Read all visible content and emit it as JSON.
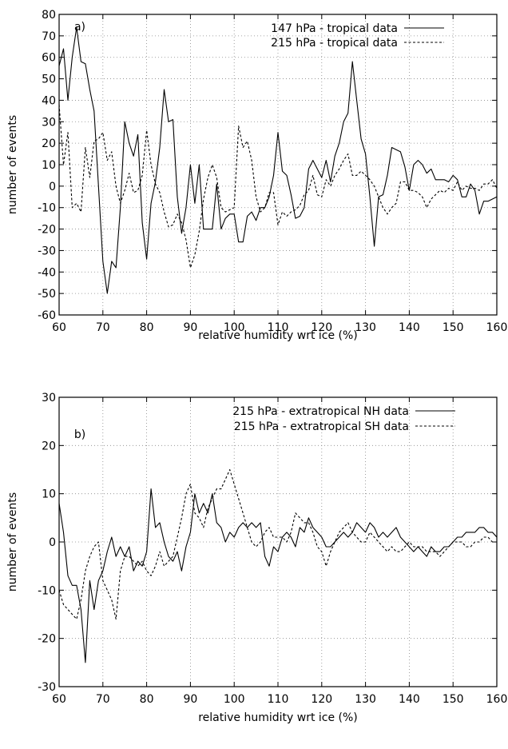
{
  "chart_data": [
    {
      "type": "line",
      "panel_label": "a)",
      "xlabel": "relative humidity wrt ice (%)",
      "ylabel": "number of events",
      "xlim": [
        60,
        160
      ],
      "ylim": [
        -60,
        80
      ],
      "xticks": [
        60,
        70,
        80,
        90,
        100,
        110,
        120,
        130,
        140,
        150,
        160
      ],
      "yticks": [
        -60,
        -50,
        -40,
        -30,
        -20,
        -10,
        0,
        10,
        20,
        30,
        40,
        50,
        60,
        70,
        80
      ],
      "grid": true,
      "legend_position": "top-right",
      "series": [
        {
          "name": "147 hPa - tropical data",
          "style": "solid",
          "x": [
            60,
            61,
            62,
            63,
            64,
            65,
            66,
            67,
            68,
            69,
            70,
            71,
            72,
            73,
            74,
            75,
            76,
            77,
            78,
            79,
            80,
            81,
            82,
            83,
            84,
            85,
            86,
            87,
            88,
            89,
            90,
            91,
            92,
            93,
            94,
            95,
            96,
            97,
            98,
            99,
            100,
            101,
            102,
            103,
            104,
            105,
            106,
            107,
            108,
            109,
            110,
            111,
            112,
            113,
            114,
            115,
            116,
            117,
            118,
            119,
            120,
            121,
            122,
            123,
            124,
            125,
            126,
            127,
            128,
            129,
            130,
            131,
            132,
            133,
            134,
            135,
            136,
            137,
            138,
            139,
            140,
            141,
            142,
            143,
            144,
            145,
            146,
            147,
            148,
            149,
            150,
            151,
            152,
            153,
            154,
            155,
            156,
            157,
            158,
            159,
            160
          ],
          "y": [
            56,
            64,
            40,
            60,
            74,
            58,
            57,
            45,
            35,
            0,
            -35,
            -50,
            -35,
            -38,
            -10,
            30,
            20,
            14,
            24,
            -17,
            -34,
            -8,
            2,
            18,
            45,
            30,
            31,
            -5,
            -22,
            -10,
            10,
            -8,
            10,
            -20,
            -20,
            -20,
            1,
            -20,
            -15,
            -13,
            -13,
            -26,
            -26,
            -14,
            -12,
            -16,
            -10,
            -10,
            -5,
            5,
            25,
            7,
            5,
            -4,
            -15,
            -14,
            -10,
            8,
            12,
            8,
            4,
            12,
            2,
            14,
            20,
            30,
            34,
            58,
            40,
            22,
            15,
            -5,
            -28,
            -5,
            -4,
            5,
            18,
            17,
            16,
            9,
            -2,
            10,
            12,
            10,
            6,
            8,
            3,
            3,
            3,
            2,
            5,
            3,
            -5,
            -5,
            1,
            -2,
            -13,
            -7,
            -7,
            -6,
            -5
          ]
        },
        {
          "name": "215 hPa - tropical data",
          "style": "dashed",
          "x": [
            60,
            61,
            62,
            63,
            64,
            65,
            66,
            67,
            68,
            69,
            70,
            71,
            72,
            73,
            74,
            75,
            76,
            77,
            78,
            79,
            80,
            81,
            82,
            83,
            84,
            85,
            86,
            87,
            88,
            89,
            90,
            91,
            92,
            93,
            94,
            95,
            96,
            97,
            98,
            99,
            100,
            101,
            102,
            103,
            104,
            105,
            106,
            107,
            108,
            109,
            110,
            111,
            112,
            113,
            114,
            115,
            116,
            117,
            118,
            119,
            120,
            121,
            122,
            123,
            124,
            125,
            126,
            127,
            128,
            129,
            130,
            131,
            132,
            133,
            134,
            135,
            136,
            137,
            138,
            139,
            140,
            141,
            142,
            143,
            144,
            145,
            146,
            147,
            148,
            149,
            150,
            151,
            152,
            153,
            154,
            155,
            156,
            157,
            158,
            159,
            160
          ],
          "y": [
            38,
            10,
            25,
            -10,
            -8,
            -12,
            18,
            4,
            21,
            22,
            25,
            12,
            16,
            0,
            -8,
            -2,
            6,
            -3,
            -2,
            5,
            26,
            10,
            1,
            -3,
            -12,
            -19,
            -18,
            -13,
            -17,
            -25,
            -38,
            -32,
            -21,
            -6,
            4,
            10,
            4,
            -10,
            -12,
            -11,
            -10,
            28,
            18,
            21,
            12,
            -5,
            -12,
            -10,
            -3,
            -3,
            -18,
            -12,
            -14,
            -12,
            -11,
            -9,
            -4,
            -2,
            5,
            -4,
            -5,
            3,
            0,
            5,
            8,
            12,
            15,
            5,
            5,
            7,
            5,
            3,
            0,
            -5,
            -10,
            -13,
            -10,
            -8,
            2,
            2,
            -2,
            -2,
            -3,
            -5,
            -10,
            -6,
            -4,
            -2,
            -3,
            -1,
            -2,
            2,
            -2,
            0,
            -1,
            -1,
            -2,
            1,
            1,
            3,
            -1
          ]
        }
      ]
    },
    {
      "type": "line",
      "panel_label": "b)",
      "xlabel": "relative humidity wrt ice (%)",
      "ylabel": "number of events",
      "xlim": [
        60,
        160
      ],
      "ylim": [
        -30,
        30
      ],
      "xticks": [
        60,
        70,
        80,
        90,
        100,
        110,
        120,
        130,
        140,
        150,
        160
      ],
      "yticks": [
        -30,
        -20,
        -10,
        0,
        10,
        20,
        30
      ],
      "grid": true,
      "legend_position": "top-right",
      "series": [
        {
          "name": "215 hPa - extratropical NH data",
          "style": "solid",
          "x": [
            60,
            61,
            62,
            63,
            64,
            65,
            66,
            67,
            68,
            69,
            70,
            71,
            72,
            73,
            74,
            75,
            76,
            77,
            78,
            79,
            80,
            81,
            82,
            83,
            84,
            85,
            86,
            87,
            88,
            89,
            90,
            91,
            92,
            93,
            94,
            95,
            96,
            97,
            98,
            99,
            100,
            101,
            102,
            103,
            104,
            105,
            106,
            107,
            108,
            109,
            110,
            111,
            112,
            113,
            114,
            115,
            116,
            117,
            118,
            119,
            120,
            121,
            122,
            123,
            124,
            125,
            126,
            127,
            128,
            129,
            130,
            131,
            132,
            133,
            134,
            135,
            136,
            137,
            138,
            139,
            140,
            141,
            142,
            143,
            144,
            145,
            146,
            147,
            148,
            149,
            150,
            151,
            152,
            153,
            154,
            155,
            156,
            157,
            158,
            159,
            160
          ],
          "y": [
            8,
            2,
            -7,
            -9,
            -9,
            -14,
            -25,
            -8,
            -14,
            -8,
            -6,
            -2,
            1,
            -3,
            -1,
            -3,
            -1,
            -6,
            -4,
            -5,
            -2,
            11,
            3,
            4,
            0,
            -3,
            -4,
            -2,
            -6,
            -1,
            2,
            10,
            6,
            8,
            6,
            10,
            4,
            3,
            0,
            2,
            1,
            3,
            4,
            3,
            4,
            3,
            4,
            -3,
            -5,
            -1,
            -2,
            1,
            2,
            1,
            -1,
            3,
            2,
            5,
            3,
            2,
            1,
            -1,
            -1,
            0,
            1,
            2,
            1,
            2,
            4,
            3,
            2,
            4,
            3,
            1,
            2,
            1,
            2,
            3,
            1,
            0,
            -1,
            -2,
            -1,
            -2,
            -3,
            -1,
            -2,
            -2,
            -1,
            -1,
            0,
            1,
            1,
            2,
            2,
            2,
            3,
            3,
            2,
            2,
            1
          ]
        },
        {
          "name": "215 hPa - extratropical SH data",
          "style": "dashed",
          "x": [
            60,
            61,
            62,
            63,
            64,
            65,
            66,
            67,
            68,
            69,
            70,
            71,
            72,
            73,
            74,
            75,
            76,
            77,
            78,
            79,
            80,
            81,
            82,
            83,
            84,
            85,
            86,
            87,
            88,
            89,
            90,
            91,
            92,
            93,
            94,
            95,
            96,
            97,
            98,
            99,
            100,
            101,
            102,
            103,
            104,
            105,
            106,
            107,
            108,
            109,
            110,
            111,
            112,
            113,
            114,
            115,
            116,
            117,
            118,
            119,
            120,
            121,
            122,
            123,
            124,
            125,
            126,
            127,
            128,
            129,
            130,
            131,
            132,
            133,
            134,
            135,
            136,
            137,
            138,
            139,
            140,
            141,
            142,
            143,
            144,
            145,
            146,
            147,
            148,
            149,
            150,
            151,
            152,
            153,
            154,
            155,
            156,
            157,
            158,
            159,
            160
          ],
          "y": [
            -10,
            -13,
            -14,
            -15,
            -16,
            -12,
            -6,
            -3,
            -1,
            0,
            -8,
            -10,
            -12,
            -16,
            -6,
            -3,
            -3,
            -4,
            -5,
            -4,
            -6,
            -7,
            -5,
            -2,
            -5,
            -4,
            -3,
            1,
            5,
            10,
            12,
            6,
            5,
            3,
            7,
            9,
            11,
            11,
            13,
            15,
            12,
            9,
            6,
            3,
            0,
            -1,
            0,
            2,
            3,
            1,
            1,
            1,
            0,
            2,
            6,
            5,
            4,
            4,
            2,
            -1,
            -2,
            -5,
            -2,
            0,
            2,
            3,
            4,
            2,
            1,
            0,
            0,
            2,
            1,
            0,
            -1,
            -2,
            -1,
            -2,
            -2,
            -1,
            0,
            -1,
            -1,
            -1,
            -2,
            -2,
            -2,
            -3,
            -2,
            -1,
            0,
            0,
            0,
            -1,
            -1,
            0,
            0,
            1,
            1,
            0,
            0
          ]
        }
      ]
    }
  ]
}
